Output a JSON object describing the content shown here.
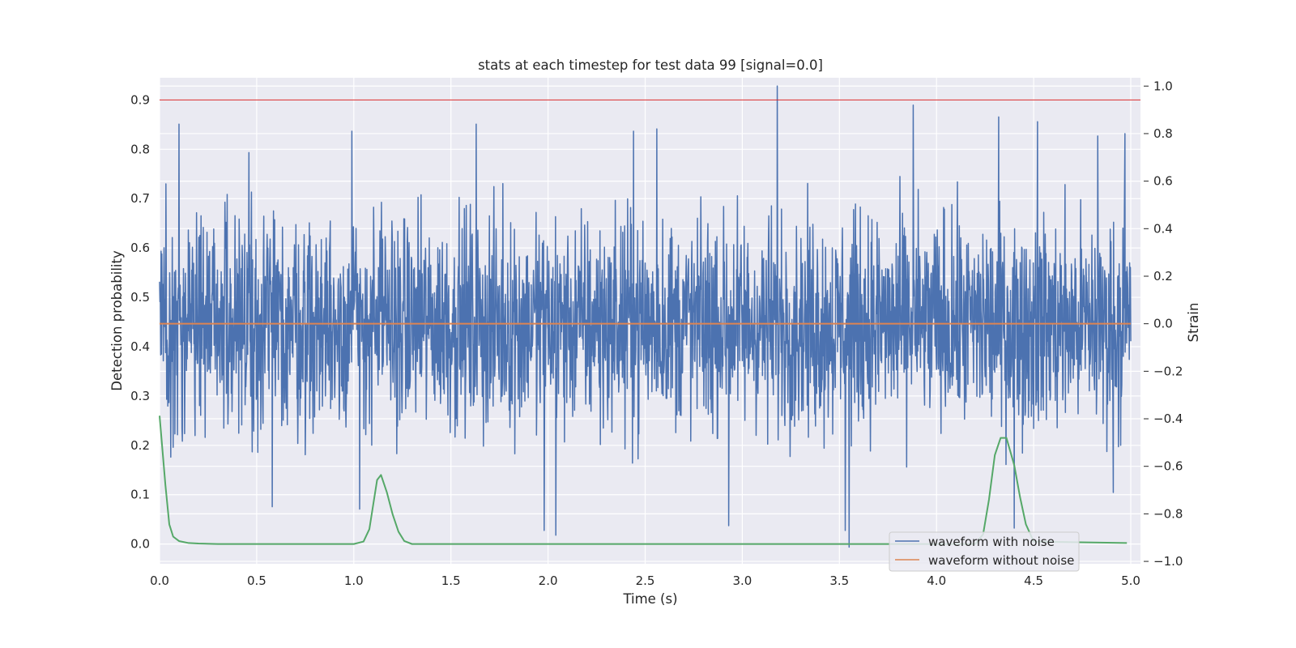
{
  "chart_data": {
    "type": "line",
    "title": "stats at each timestep for test data 99 [signal=0.0]",
    "xlabel": "Time (s)",
    "ylabel": "Detection probability",
    "y2label": "Strain",
    "xlim": [
      0.0,
      5.05
    ],
    "ylim": [
      -0.04,
      0.945
    ],
    "y2lim": [
      -1.01,
      1.035
    ],
    "xticks": [
      0.0,
      0.5,
      1.0,
      1.5,
      2.0,
      2.5,
      3.0,
      3.5,
      4.0,
      4.5,
      5.0
    ],
    "xtick_labels": [
      "0.0",
      "0.5",
      "1.0",
      "1.5",
      "2.0",
      "2.5",
      "3.0",
      "3.5",
      "4.0",
      "4.5",
      "5.0"
    ],
    "yticks": [
      0.0,
      0.1,
      0.2,
      0.3,
      0.4,
      0.5,
      0.6,
      0.7,
      0.8,
      0.9
    ],
    "ytick_labels": [
      "0.0",
      "0.1",
      "0.2",
      "0.3",
      "0.4",
      "0.5",
      "0.6",
      "0.7",
      "0.8",
      "0.9"
    ],
    "y2ticks": [
      -1.0,
      -0.8,
      -0.6,
      -0.4,
      -0.2,
      0.0,
      0.2,
      0.4,
      0.6,
      0.8,
      1.0
    ],
    "y2tick_labels": [
      "−1.0",
      "−0.8",
      "−0.6",
      "−0.4",
      "−0.2",
      "0.0",
      "0.2",
      "0.4",
      "0.6",
      "0.8",
      "1.0"
    ],
    "grid": true,
    "legend_position": "bottom-right",
    "threshold_line": {
      "y": 0.9,
      "color": "#d62728"
    },
    "series": [
      {
        "name": "waveform with noise",
        "axis": "right",
        "color": "#4c72b0",
        "x_range": [
          0.0,
          5.0
        ],
        "baseline": 0.0,
        "typical_range": [
          -0.35,
          0.35
        ],
        "peaks": [
          {
            "x": 0.1,
            "y": 0.84
          },
          {
            "x": 0.46,
            "y": 0.72
          },
          {
            "x": 0.99,
            "y": 0.81
          },
          {
            "x": 1.63,
            "y": 0.84
          },
          {
            "x": 2.44,
            "y": 0.81
          },
          {
            "x": 2.56,
            "y": 0.82
          },
          {
            "x": 3.18,
            "y": 1.0
          },
          {
            "x": 3.88,
            "y": 0.92
          },
          {
            "x": 4.32,
            "y": 0.87
          },
          {
            "x": 4.52,
            "y": 0.85
          },
          {
            "x": 4.83,
            "y": 0.79
          },
          {
            "x": 4.97,
            "y": 0.8
          }
        ],
        "troughs": [
          {
            "x": 0.07,
            "y": -0.52
          },
          {
            "x": 0.58,
            "y": -0.77
          },
          {
            "x": 1.03,
            "y": -0.78
          },
          {
            "x": 1.98,
            "y": -0.87
          },
          {
            "x": 2.04,
            "y": -0.89
          },
          {
            "x": 2.93,
            "y": -0.85
          },
          {
            "x": 3.53,
            "y": -0.87
          },
          {
            "x": 3.55,
            "y": -0.94
          },
          {
            "x": 4.4,
            "y": -0.86
          },
          {
            "x": 4.91,
            "y": -0.71
          }
        ]
      },
      {
        "name": "waveform without noise",
        "axis": "right",
        "color": "#dd8452",
        "x": [
          0.0,
          5.0
        ],
        "y": [
          0.0,
          0.0
        ]
      },
      {
        "name": "",
        "axis": "left",
        "color": "#55a868",
        "x": [
          0.0,
          0.03,
          0.05,
          0.07,
          0.1,
          0.15,
          0.2,
          0.3,
          1.0,
          1.05,
          1.08,
          1.1,
          1.12,
          1.14,
          1.17,
          1.2,
          1.23,
          1.26,
          1.3,
          4.2,
          4.24,
          4.27,
          4.3,
          4.33,
          4.36,
          4.4,
          4.43,
          4.46,
          4.5,
          4.98
        ],
        "y": [
          0.26,
          0.12,
          0.04,
          0.015,
          0.006,
          0.002,
          0.001,
          0.0,
          0.0,
          0.005,
          0.03,
          0.08,
          0.13,
          0.14,
          0.105,
          0.06,
          0.025,
          0.006,
          0.0,
          0.0,
          0.02,
          0.09,
          0.18,
          0.215,
          0.215,
          0.16,
          0.095,
          0.04,
          0.005,
          0.002
        ]
      }
    ]
  }
}
